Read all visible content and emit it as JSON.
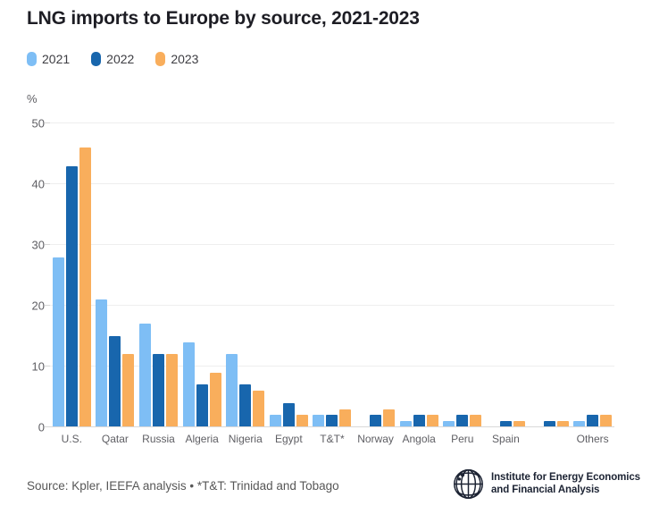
{
  "header": {
    "title": "LNG imports to Europe by source, 2021-2023"
  },
  "legend": {
    "items": [
      {
        "label": "2021",
        "color": "#7EBEF5"
      },
      {
        "label": "2022",
        "color": "#1866AD"
      },
      {
        "label": "2023",
        "color": "#F9AE5C"
      }
    ]
  },
  "y_axis": {
    "unit": "%",
    "ticks": [
      0,
      10,
      20,
      30,
      40,
      50
    ]
  },
  "chart_data": {
    "type": "bar",
    "title": "LNG imports to Europe by source, 2021-2023",
    "xlabel": "",
    "ylabel": "%",
    "ylim": [
      0,
      50
    ],
    "y_ticks": [
      0,
      10,
      20,
      30,
      40,
      50
    ],
    "grid": true,
    "legend_position": "top-left",
    "categories": [
      "U.S.",
      "Qatar",
      "Russia",
      "Algeria",
      "Nigeria",
      "Egypt",
      "T&T*",
      "Norway",
      "Angola",
      "Peru",
      "Spain",
      "",
      "Others"
    ],
    "series": [
      {
        "name": "2021",
        "color": "#7EBEF5",
        "values": [
          28,
          21,
          17,
          14,
          12,
          2,
          2,
          null,
          1,
          1,
          null,
          null,
          1
        ]
      },
      {
        "name": "2022",
        "color": "#1866AD",
        "values": [
          43,
          15,
          12,
          7,
          7,
          4,
          2,
          2,
          2,
          2,
          1,
          1,
          2
        ]
      },
      {
        "name": "2023",
        "color": "#F9AE5C",
        "values": [
          46,
          12,
          12,
          9,
          6,
          2,
          3,
          3,
          2,
          2,
          1,
          1,
          2
        ]
      }
    ]
  },
  "footer": {
    "source": "Source: Kpler, IEEFA analysis • *T&T: Trinidad and Tobago",
    "logo": {
      "line1": "Institute for Energy Economics",
      "line2": "and Financial Analysis"
    }
  }
}
